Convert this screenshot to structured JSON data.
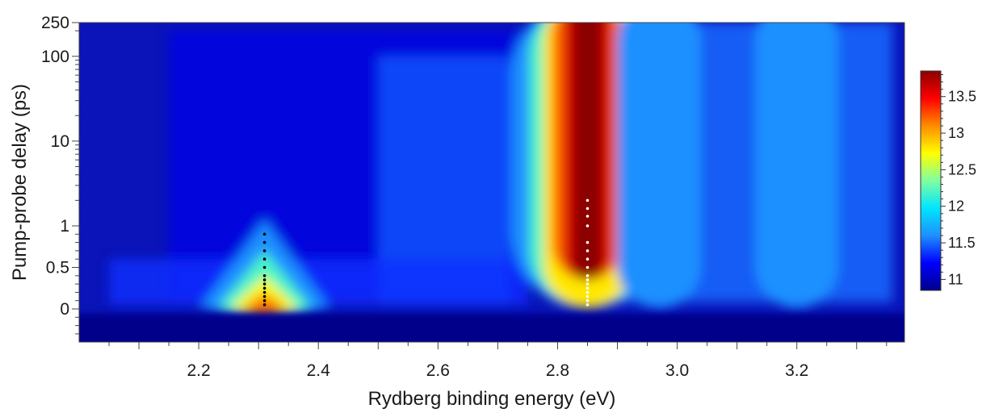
{
  "chart_data": {
    "type": "heatmap",
    "title": "",
    "xlabel": "Rydberg binding energy (eV)",
    "ylabel": "Pump-probe delay (ps)",
    "x_ticks": [
      2.2,
      2.4,
      2.6,
      2.8,
      3.0,
      3.2
    ],
    "x_tick_labels": [
      "2.2",
      "2.4",
      "2.6",
      "2.8",
      "3.0",
      "3.2"
    ],
    "xlim": [
      2.0,
      3.38
    ],
    "y_scale": "linear near zero, logarithmic above 1 ps",
    "y_ticks": [
      0,
      0.5,
      1,
      10,
      100,
      250
    ],
    "y_tick_labels": [
      "0",
      "0.5",
      "1",
      "10",
      "100",
      "250"
    ],
    "colorbar": {
      "ticks": [
        11,
        11.5,
        12,
        12.5,
        13,
        13.5
      ],
      "tick_labels": [
        "11",
        "11.5",
        "12",
        "12.5",
        "13",
        "13.5"
      ],
      "range": [
        10.85,
        13.85
      ],
      "colors": [
        "#00008b",
        "#0000ff",
        "#1e90ff",
        "#00e5ff",
        "#7fffa0",
        "#ffff00",
        "#ff8c00",
        "#ff0000",
        "#8b0000"
      ]
    },
    "peaks": [
      {
        "energy_eV": 2.31,
        "delay_range_ps": [
          0,
          1
        ],
        "peak_intensity": 13.2,
        "marker_color": "#000000"
      },
      {
        "energy_eV": 2.85,
        "delay_range_ps": [
          0.05,
          250
        ],
        "peak_intensity": 13.8,
        "marker_color": "#ffffff"
      },
      {
        "energy_eV": 3.2,
        "delay_range_ps": [
          0.05,
          250
        ],
        "peak_intensity": 11.9
      },
      {
        "energy_eV": 2.97,
        "delay_range_ps": [
          0.05,
          250
        ],
        "peak_intensity": 12.0
      }
    ],
    "marker_delays_ps": {
      "peak_2_31": [
        0.05,
        0.1,
        0.15,
        0.2,
        0.25,
        0.3,
        0.35,
        0.4,
        0.5,
        0.6,
        0.7,
        0.8,
        0.9
      ],
      "peak_2_85": [
        0.05,
        0.1,
        0.15,
        0.2,
        0.25,
        0.3,
        0.35,
        0.4,
        0.5,
        0.6,
        0.7,
        0.8,
        1,
        1.3,
        1.6,
        2
      ]
    }
  }
}
